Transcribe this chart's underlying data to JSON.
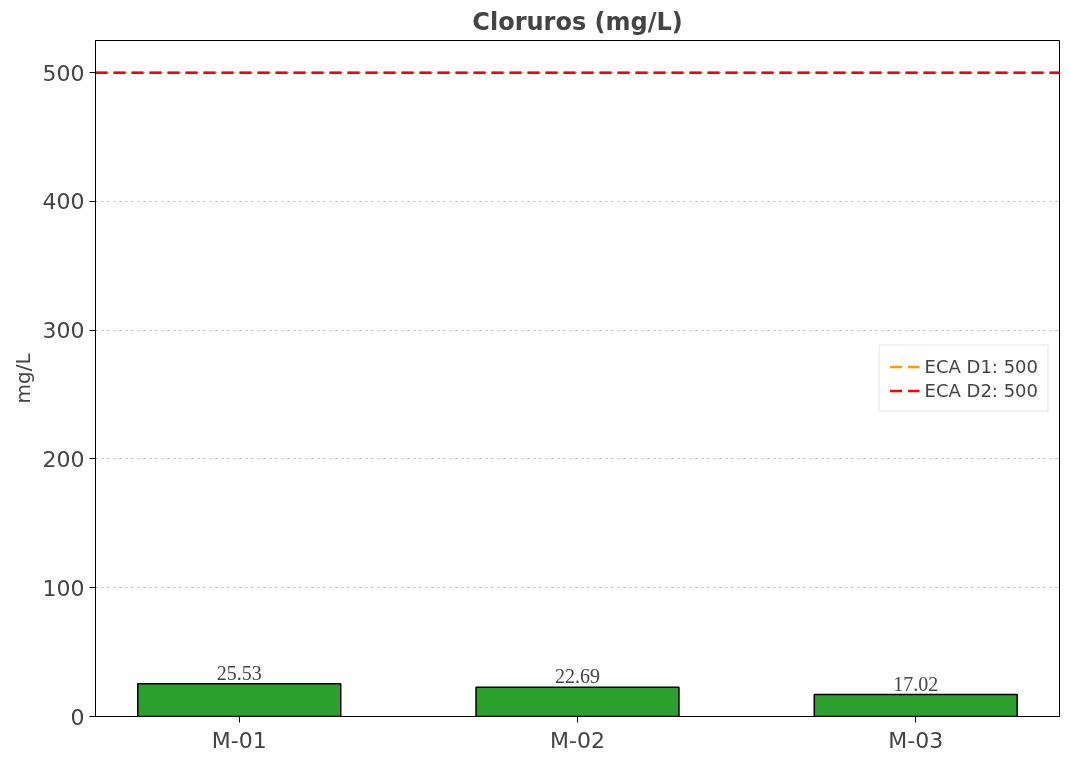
{
  "chart_data": {
    "type": "bar",
    "title": "Cloruros (mg/L)",
    "ylabel": "mg/L",
    "categories": [
      "M-01",
      "M-02",
      "M-03"
    ],
    "values": [
      25.53,
      22.69,
      17.02
    ],
    "color": "#2ca02c",
    "data_labels": true,
    "ylim": [
      0,
      525
    ],
    "yticks": [
      0,
      100,
      200,
      300,
      400,
      500
    ],
    "grid": "y",
    "legend": "right",
    "ref_lines": [
      {
        "axis": "y",
        "value": 500,
        "label": "ECA D1: 500",
        "color": "#ff9900",
        "line_style": "dashed"
      },
      {
        "axis": "y",
        "value": 500,
        "label": "ECA D2: 500",
        "color": "#ff0000",
        "line_style": "dashed"
      }
    ]
  }
}
